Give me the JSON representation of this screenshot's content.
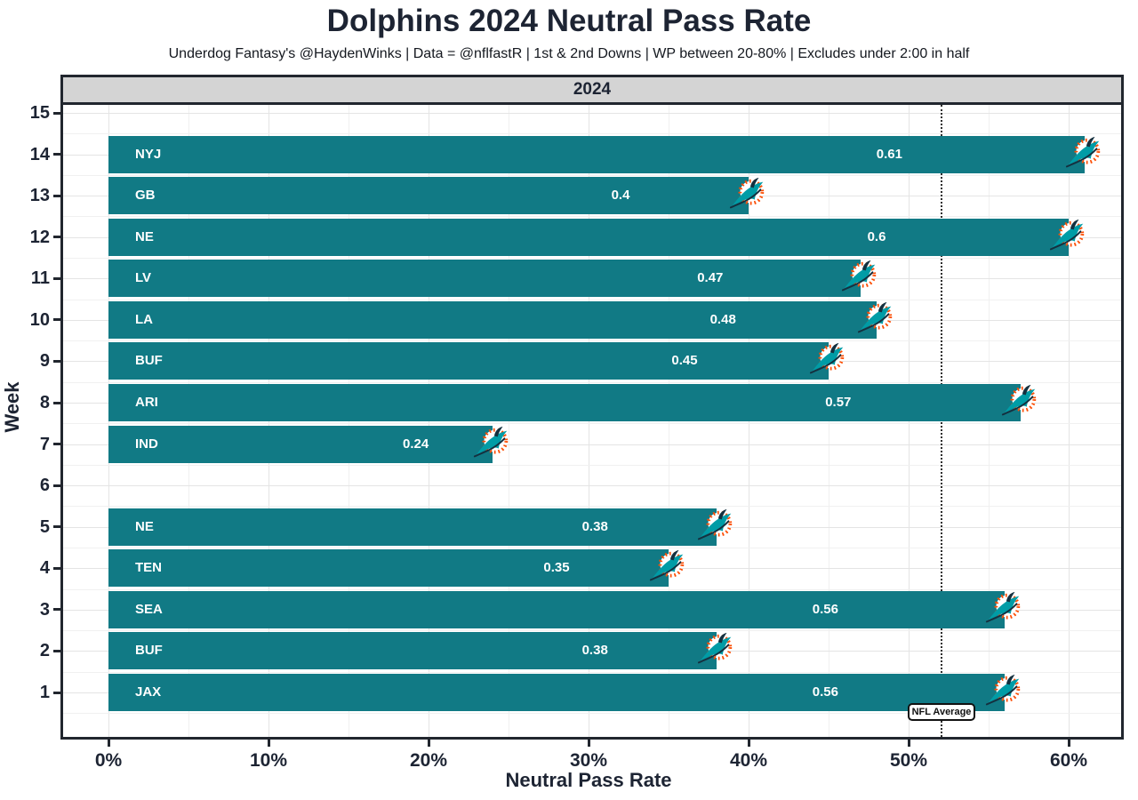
{
  "header": {
    "title": "Dolphins 2024 Neutral Pass Rate",
    "subtitle": "Underdog Fantasy's @HaydenWinks | Data = @nflfastR | 1st & 2nd Downs | WP between 20-80% | Excludes under 2:00 in half"
  },
  "facet": {
    "label": "2024"
  },
  "colors": {
    "bar_teal": "#117A85",
    "logo_aqua": "#009CA6",
    "logo_orange": "#FC4C02",
    "logo_navy": "#14303F",
    "text_navy": "#1D2433",
    "strip_gray": "#D4D4D4"
  },
  "chart_data": {
    "type": "bar",
    "orientation": "horizontal",
    "title": "Dolphins 2024 Neutral Pass Rate",
    "xlabel": "Neutral Pass Rate",
    "ylabel": "Week",
    "facet_label": "2024",
    "x_tick_labels": [
      "0%",
      "10%",
      "20%",
      "30%",
      "40%",
      "50%",
      "60%"
    ],
    "x_tick_values": [
      0,
      10,
      20,
      30,
      40,
      50,
      60
    ],
    "x_minor_values": [
      5,
      15,
      25,
      35,
      45,
      55
    ],
    "xlim_pct": [
      -2.9,
      63.4
    ],
    "y_ticks": [
      1,
      2,
      3,
      4,
      5,
      6,
      7,
      8,
      9,
      10,
      11,
      12,
      13,
      14,
      15
    ],
    "grid": "on",
    "legend": "none",
    "bye_weeks": [
      6
    ],
    "weeks_without_bars": [
      6,
      15
    ],
    "value_label_position": 0.8,
    "nfl_average": {
      "value_pct": 52,
      "label": "NFL Average"
    },
    "bars": [
      {
        "week": 14,
        "opponent": "NYJ",
        "value": 0.61,
        "label": "0.61"
      },
      {
        "week": 13,
        "opponent": "GB",
        "value": 0.4,
        "label": "0.4"
      },
      {
        "week": 12,
        "opponent": "NE",
        "value": 0.6,
        "label": "0.6"
      },
      {
        "week": 11,
        "opponent": "LV",
        "value": 0.47,
        "label": "0.47"
      },
      {
        "week": 10,
        "opponent": "LA",
        "value": 0.48,
        "label": "0.48"
      },
      {
        "week": 9,
        "opponent": "BUF",
        "value": 0.45,
        "label": "0.45"
      },
      {
        "week": 8,
        "opponent": "ARI",
        "value": 0.57,
        "label": "0.57"
      },
      {
        "week": 7,
        "opponent": "IND",
        "value": 0.24,
        "label": "0.24"
      },
      {
        "week": 5,
        "opponent": "NE",
        "value": 0.38,
        "label": "0.38"
      },
      {
        "week": 4,
        "opponent": "TEN",
        "value": 0.35,
        "label": "0.35"
      },
      {
        "week": 3,
        "opponent": "SEA",
        "value": 0.56,
        "label": "0.56"
      },
      {
        "week": 2,
        "opponent": "BUF",
        "value": 0.38,
        "label": "0.38"
      },
      {
        "week": 1,
        "opponent": "JAX",
        "value": 0.56,
        "label": "0.56"
      }
    ]
  }
}
